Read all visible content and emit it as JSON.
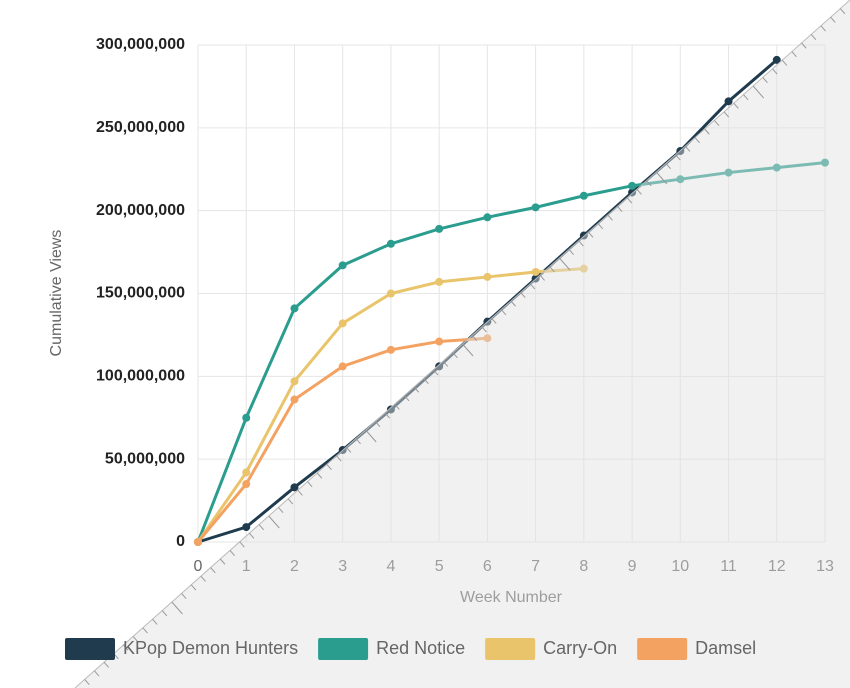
{
  "chart_data": {
    "type": "line",
    "x_label": "Week Number",
    "y_label": "Cumulative Views",
    "x": [
      0,
      1,
      2,
      3,
      4,
      5,
      6,
      7,
      8,
      9,
      10,
      11,
      12,
      13
    ],
    "xlim": [
      0,
      13
    ],
    "xticks": [
      0,
      1,
      2,
      3,
      4,
      5,
      6,
      7,
      8,
      9,
      10,
      11,
      12,
      13
    ],
    "ylim": [
      0,
      300000000
    ],
    "yticks": [
      0,
      {
        "value": 50000000,
        "label": "50,000,000"
      },
      {
        "value": 100000000,
        "label": "100,000,000"
      },
      {
        "value": 150000000,
        "label": "150,000,000"
      },
      {
        "value": 200000000,
        "label": "200,000,000"
      },
      {
        "value": 250000000,
        "label": "250,000,000"
      },
      {
        "value": 300000000,
        "label": "300,000,000"
      }
    ],
    "grid": true,
    "legend": "bottom",
    "series": [
      {
        "name": "KPop Demon Hunters",
        "color": "#1f3b4d",
        "values": [
          0,
          9000000,
          33000000,
          55500000,
          80000000,
          106000000,
          133000000,
          159000000,
          185000000,
          211000000,
          236000000,
          266000000,
          291000000,
          null
        ]
      },
      {
        "name": "Red Notice",
        "color": "#2a9d8f",
        "values": [
          0,
          75000000,
          141000000,
          167000000,
          180000000,
          189000000,
          196000000,
          202000000,
          209000000,
          215000000,
          219000000,
          223000000,
          226000000,
          229000000
        ]
      },
      {
        "name": "Carry-On",
        "color": "#e9c46a",
        "values": [
          0,
          42000000,
          97000000,
          132000000,
          150000000,
          157000000,
          160000000,
          163000000,
          165000000,
          null,
          null,
          null,
          null,
          null
        ]
      },
      {
        "name": "Damsel",
        "color": "#f4a261",
        "values": [
          0,
          35000000,
          86000000,
          106000000,
          116000000,
          121000000,
          123000000,
          null,
          null,
          null,
          null,
          null,
          null,
          null
        ]
      }
    ]
  }
}
